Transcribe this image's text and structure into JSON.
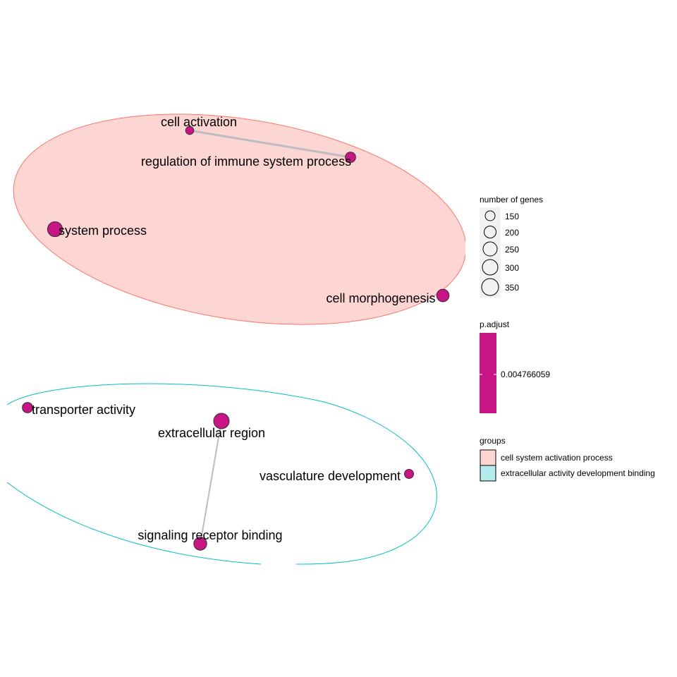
{
  "chart_data": {
    "type": "network",
    "title": "",
    "colors": {
      "node_fill": "#C71585",
      "node_stroke": "#333333",
      "edge": "#BDBDBD",
      "group1_fill": "#F8766D",
      "group2_fill": "#00BFC4"
    },
    "groups": [
      {
        "name": "cell system activation process",
        "color": "#F8766D"
      },
      {
        "name": "extracellular activity development binding",
        "color": "#00BFC4"
      }
    ],
    "nodes": [
      {
        "id": "cell activation",
        "group": 0,
        "genes": 110
      },
      {
        "id": "regulation of immune system process",
        "group": 0,
        "genes": 180
      },
      {
        "id": "system process",
        "group": 0,
        "genes": 370
      },
      {
        "id": "cell morphogenesis",
        "group": 0,
        "genes": 260
      },
      {
        "id": "transporter activity",
        "group": 1,
        "genes": 180
      },
      {
        "id": "extracellular region",
        "group": 1,
        "genes": 400
      },
      {
        "id": "vasculature development",
        "group": 1,
        "genes": 140
      },
      {
        "id": "signaling receptor binding",
        "group": 1,
        "genes": 280
      }
    ],
    "edges": [
      {
        "source": "cell activation",
        "target": "regulation of immune system process"
      },
      {
        "source": "extracellular region",
        "target": "signaling receptor binding"
      }
    ],
    "legend": {
      "size_title": "number of genes",
      "size_values": [
        150,
        200,
        250,
        300,
        350
      ],
      "color_title": "p.adjust",
      "color_value": "0.004766059",
      "group_title": "groups"
    }
  }
}
